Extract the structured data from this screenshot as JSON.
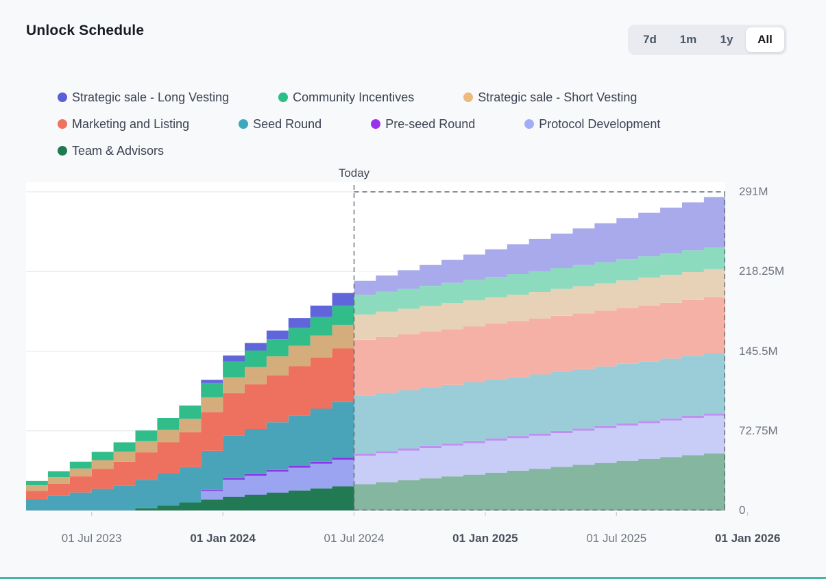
{
  "header": {
    "title": "Unlock Schedule"
  },
  "range_switcher": {
    "options": [
      {
        "label": "7d",
        "active": false
      },
      {
        "label": "1m",
        "active": false
      },
      {
        "label": "1y",
        "active": false
      },
      {
        "label": "All",
        "active": true
      }
    ]
  },
  "legend": {
    "rows": [
      [
        {
          "label": "Strategic sale - Long Vesting",
          "color": "#5a5fd9"
        },
        {
          "label": "Community Incentives",
          "color": "#2dbd88"
        },
        {
          "label": "Strategic sale - Short Vesting",
          "color": "#eeb97e"
        }
      ],
      [
        {
          "label": "Marketing and Listing",
          "color": "#f0725e"
        },
        {
          "label": "Seed Round",
          "color": "#3da9bf"
        },
        {
          "label": "Pre-seed Round",
          "color": "#9a31ee"
        },
        {
          "label": "Protocol Development",
          "color": "#a3adf7"
        }
      ],
      [
        {
          "label": "Team & Advisors",
          "color": "#1e7b51"
        }
      ]
    ]
  },
  "chart_data": {
    "type": "area",
    "stacked": true,
    "step": true,
    "title": "Unlock Schedule",
    "today_label": "Today",
    "today_month_index": 15,
    "future_faded": true,
    "ylim": [
      0,
      291
    ],
    "yticks": [
      {
        "label": "291M",
        "value": 291
      },
      {
        "label": "218.25M",
        "value": 218.25
      },
      {
        "label": "145.5M",
        "value": 145.5
      },
      {
        "label": "72.75M",
        "value": 72.75
      },
      {
        "label": "0",
        "value": 0
      }
    ],
    "xticks": [
      {
        "label": "01 Jul 2023",
        "month": 3,
        "bold": false
      },
      {
        "label": "01 Jan 2024",
        "month": 9,
        "bold": true
      },
      {
        "label": "01 Jul 2024",
        "month": 15,
        "bold": false
      },
      {
        "label": "01 Jan 2025",
        "month": 21,
        "bold": true
      },
      {
        "label": "01 Jul 2025",
        "month": 27,
        "bold": false
      },
      {
        "label": "01 Jan 2026",
        "month": 33,
        "bold": true
      }
    ],
    "months": [
      "2023-04",
      "2023-05",
      "2023-06",
      "2023-07",
      "2023-08",
      "2023-09",
      "2023-10",
      "2023-11",
      "2023-12",
      "2024-01",
      "2024-02",
      "2024-03",
      "2024-04",
      "2024-05",
      "2024-06",
      "2024-07",
      "2024-08",
      "2024-09",
      "2024-10",
      "2024-11",
      "2024-12",
      "2025-01",
      "2025-02",
      "2025-03",
      "2025-04",
      "2025-05",
      "2025-06",
      "2025-07",
      "2025-08",
      "2025-09",
      "2025-10",
      "2025-11",
      "2025-12"
    ],
    "unit": "M tokens",
    "series": [
      {
        "name": "Team & Advisors",
        "color": "#217a53",
        "values": [
          0,
          0,
          0,
          0,
          0,
          2,
          4.6,
          7.2,
          9.9,
          12.5,
          14.4,
          16.3,
          18.3,
          20.2,
          22.1,
          24,
          25.8,
          27.5,
          29.3,
          31.1,
          32.8,
          34.6,
          36.4,
          38.1,
          39.9,
          41.6,
          43.4,
          45.2,
          46.9,
          48.7,
          50.5,
          52.2,
          54
        ]
      },
      {
        "name": "Protocol Development",
        "color": "#9aa4f1",
        "values": [
          0,
          0,
          0,
          0,
          0,
          0,
          0,
          0,
          8,
          15.6,
          17.3,
          19.1,
          20.8,
          22.5,
          24.3,
          26,
          26.5,
          27.1,
          27.6,
          28.1,
          28.6,
          29.2,
          29.7,
          30.2,
          30.8,
          31.3,
          31.8,
          32.4,
          32.9,
          33.4,
          33.9,
          34.5,
          35
        ]
      },
      {
        "name": "Pre-seed Round",
        "color": "#8a35e6",
        "values": [
          0,
          0,
          0,
          0,
          0,
          0,
          0,
          0,
          1,
          1.5,
          1.6,
          1.7,
          1.8,
          1.9,
          2,
          2,
          2,
          2,
          2,
          2,
          2,
          2,
          2,
          2,
          2,
          2,
          2,
          2,
          2,
          2,
          2,
          2,
          2
        ]
      },
      {
        "name": "Seed Round",
        "color": "#4aa4b9",
        "values": [
          10,
          13.2,
          16.4,
          19.6,
          22.8,
          26,
          29.2,
          32.4,
          35.6,
          38.8,
          41.2,
          43.5,
          45.9,
          48.3,
          50.6,
          53,
          53.1,
          53.2,
          53.4,
          53.5,
          53.6,
          53.7,
          53.8,
          53.9,
          54.1,
          54.2,
          54.3,
          54.4,
          54.5,
          54.6,
          54.8,
          54.9,
          55
        ]
      },
      {
        "name": "Marketing and Listing",
        "color": "#ee7160",
        "values": [
          8,
          11.4,
          14.8,
          18.3,
          21.7,
          25.1,
          28.5,
          31.9,
          35.4,
          38.8,
          40.8,
          42.8,
          44.9,
          46.9,
          49,
          51,
          51,
          51,
          51,
          51,
          51,
          51,
          51,
          51,
          51,
          51,
          51,
          51,
          51,
          51,
          51,
          51,
          51
        ]
      },
      {
        "name": "Strategic sale - Short Vesting",
        "color": "#d5ad7c",
        "values": [
          5,
          6,
          7.1,
          8.1,
          9.2,
          10.2,
          11.3,
          12.3,
          13.4,
          14.4,
          15.8,
          17.3,
          18.7,
          20.1,
          21.6,
          23,
          23.2,
          23.4,
          23.5,
          23.7,
          23.9,
          24.1,
          24.2,
          24.4,
          24.6,
          24.8,
          24.9,
          25.1,
          25.3,
          25.5,
          25.6,
          25.8,
          26
        ]
      },
      {
        "name": "Community Incentives",
        "color": "#31bd8a",
        "values": [
          4,
          5.2,
          6.3,
          7.5,
          8.6,
          9.8,
          10.9,
          12.1,
          13.2,
          14.4,
          15,
          15.6,
          16.2,
          16.8,
          17.4,
          18,
          18.1,
          18.2,
          18.4,
          18.5,
          18.6,
          18.7,
          18.8,
          18.9,
          19.1,
          19.2,
          19.3,
          19.4,
          19.5,
          19.6,
          19.8,
          19.9,
          20
        ]
      },
      {
        "name": "Strategic sale - Long Vesting",
        "color": "#6165dc",
        "values": [
          0,
          0,
          0,
          0,
          0,
          0,
          0,
          0,
          2.8,
          5.6,
          6.8,
          8,
          9.2,
          10.4,
          11.6,
          12.8,
          14.9,
          17,
          19,
          21.1,
          23.2,
          25.2,
          27.3,
          29.4,
          31.4,
          33.5,
          35.6,
          37.6,
          39.7,
          41.8,
          43.8,
          45.9,
          48
        ]
      }
    ]
  }
}
